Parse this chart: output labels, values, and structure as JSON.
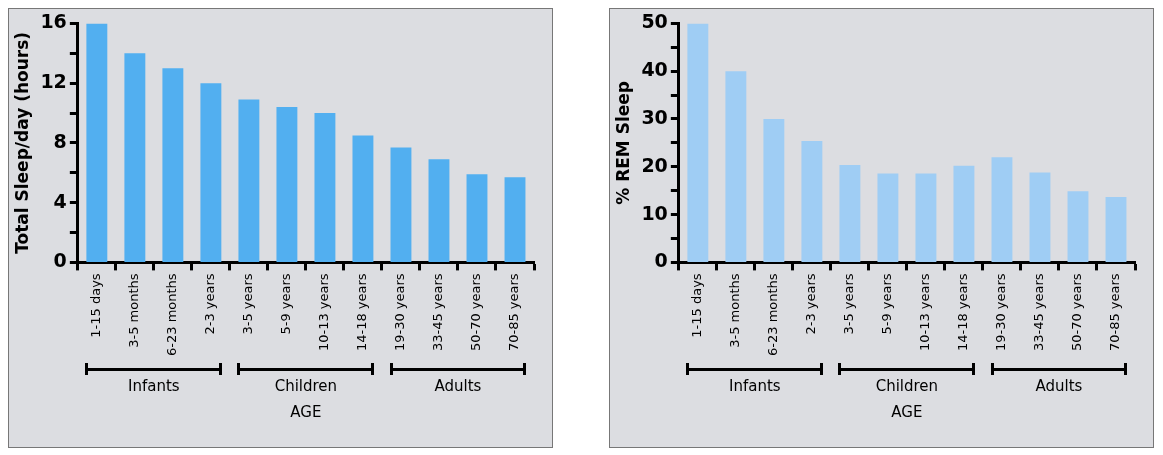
{
  "chart_data": [
    {
      "type": "bar",
      "ylabel": "Total Sleep/day (hours)",
      "xlabel": "AGE",
      "categories": [
        "1-15 days",
        "3-5 months",
        "6-23 months",
        "2-3 years",
        "3-5 years",
        "5-9 years",
        "10-13 years",
        "14-18 years",
        "19-30 years",
        "33-45 years",
        "50-70 years",
        "70-85 years"
      ],
      "values": [
        16,
        14,
        13,
        12,
        10.9,
        10.4,
        10,
        8.5,
        7.7,
        6.9,
        5.9,
        5.7
      ],
      "color": "#52aff0",
      "ylim": [
        0,
        16
      ],
      "yticks": [
        0,
        {
          "value": 2,
          "label": null
        },
        4,
        {
          "value": 6,
          "label": null
        },
        8,
        {
          "value": 10,
          "label": null
        },
        12,
        {
          "value": 14,
          "label": null
        },
        16
      ],
      "annotations": [
        "Infants",
        "Children",
        "Adults"
      ],
      "grid": false
    },
    {
      "type": "bar",
      "ylabel": "% REM Sleep",
      "xlabel": "AGE",
      "categories": [
        "1-15 days",
        "3-5 months",
        "6-23 months",
        "2-3 years",
        "3-5 years",
        "5-9 years",
        "10-13 years",
        "14-18 years",
        "19-30 years",
        "33-45 years",
        "50-70 years",
        "70-85 years"
      ],
      "values": [
        50,
        40,
        30,
        25.4,
        20.4,
        18.6,
        18.6,
        20.2,
        22,
        18.8,
        14.9,
        13.7
      ],
      "color": "#9fcdf4",
      "ylim": [
        0,
        50
      ],
      "yticks": [
        0,
        {
          "value": 5,
          "label": null
        },
        10,
        {
          "value": 15,
          "label": null
        },
        20,
        {
          "value": 25,
          "label": null
        },
        30,
        {
          "value": 35,
          "label": null
        },
        40,
        {
          "value": 45,
          "label": null
        },
        50
      ],
      "annotations": [
        "Infants",
        "Children",
        "Adults"
      ],
      "grid": false
    }
  ]
}
